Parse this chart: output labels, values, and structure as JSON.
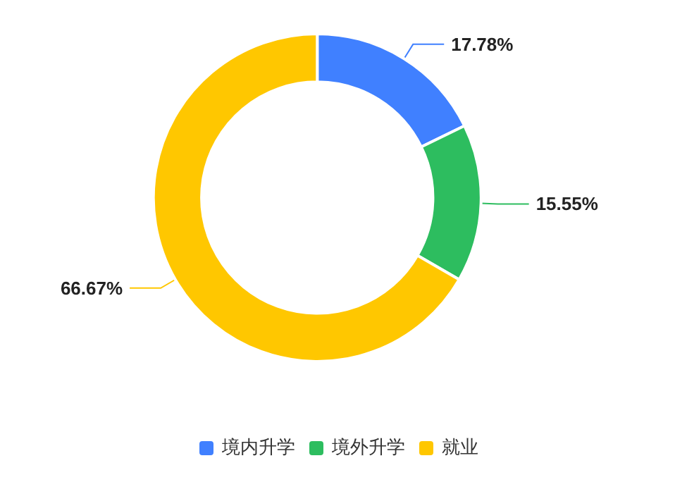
{
  "chart_data": {
    "type": "donut",
    "categories": [
      "境内升学",
      "境外升学",
      "就业"
    ],
    "values": [
      17.78,
      15.55,
      66.67
    ],
    "colors": [
      "#4080ff",
      "#2dbd5f",
      "#ffc700"
    ],
    "value_labels": [
      "17.78%",
      "15.55%",
      "66.67%"
    ],
    "legend": "bottom"
  }
}
